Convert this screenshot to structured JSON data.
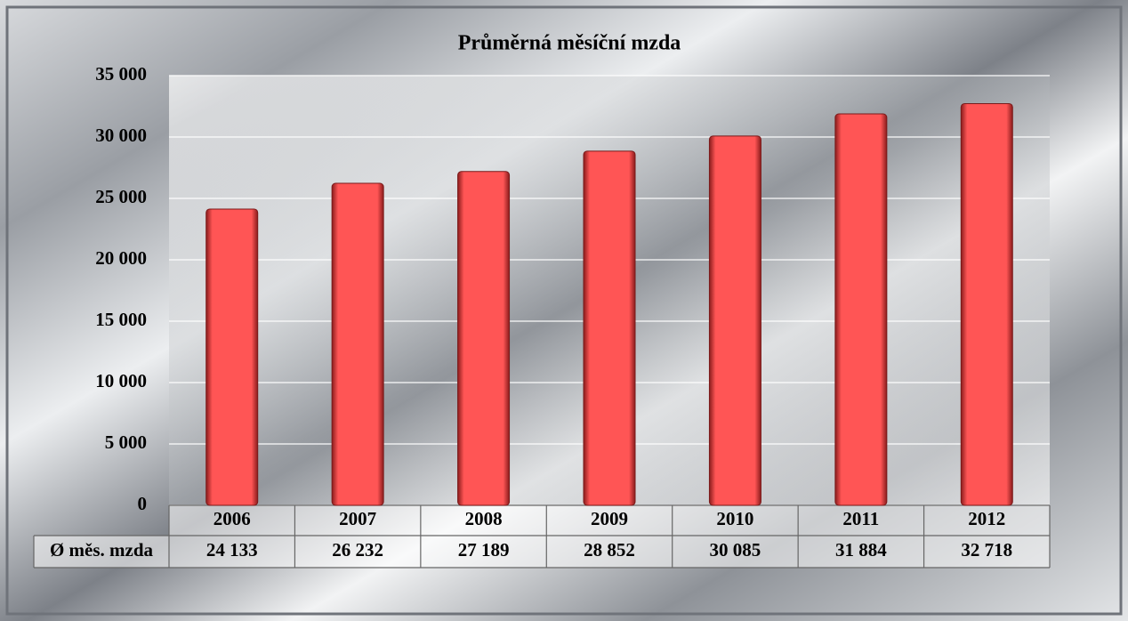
{
  "chart_data": {
    "type": "bar",
    "title": "Průměrná měsíční mzda",
    "categories": [
      "2006",
      "2007",
      "2008",
      "2009",
      "2010",
      "2011",
      "2012"
    ],
    "series": [
      {
        "name": "Ø měs. mzda",
        "color": "#ff5555",
        "values": [
          24133,
          26232,
          27189,
          28852,
          30085,
          31884,
          32718
        ],
        "value_labels": [
          "24 133",
          "26 232",
          "27 189",
          "28 852",
          "30 085",
          "31 884",
          "32 718"
        ]
      }
    ],
    "ylim": [
      0,
      35000
    ],
    "yticks": [
      0,
      {
        "value": 5000,
        "label": "5 000"
      },
      {
        "value": 10000,
        "label": "10 000"
      },
      {
        "value": 15000,
        "label": "15 000"
      },
      {
        "value": 20000,
        "label": "20 000"
      },
      {
        "value": 25000,
        "label": "25 000"
      },
      {
        "value": 30000,
        "label": "30 000"
      },
      {
        "value": 35000,
        "label": "35 000"
      }
    ],
    "grid": true
  }
}
